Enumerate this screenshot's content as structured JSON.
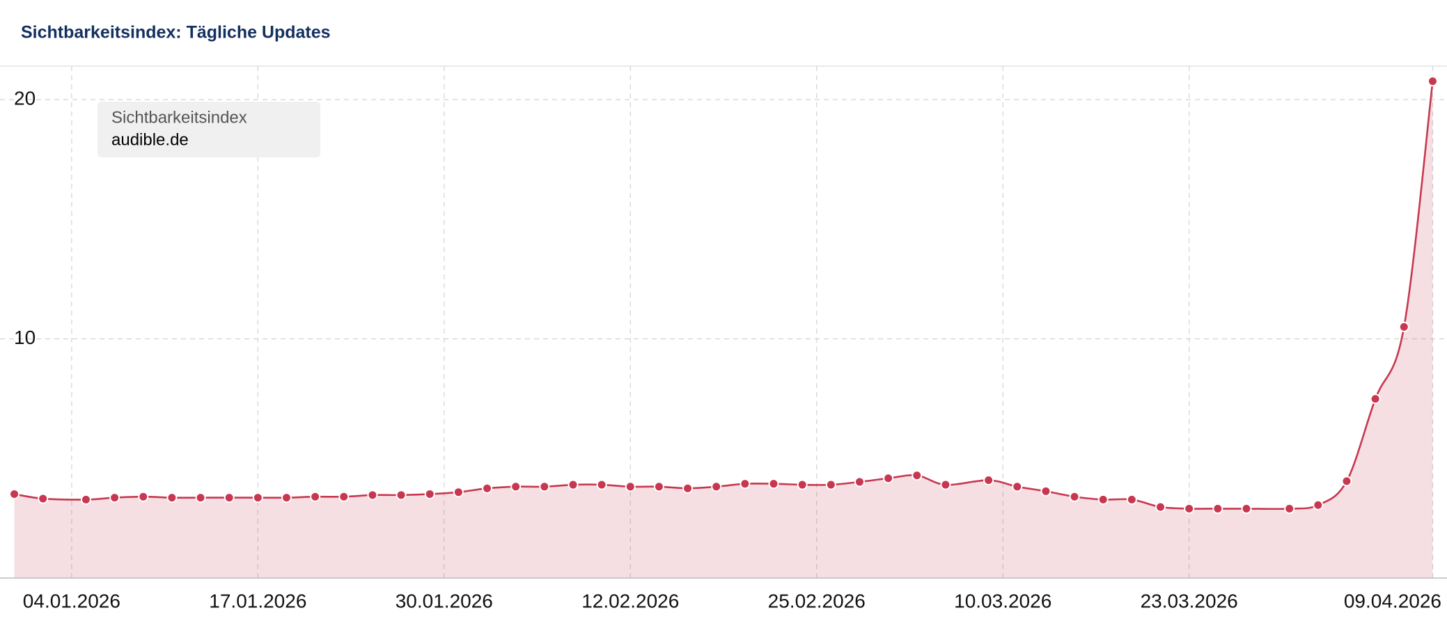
{
  "chart_data": {
    "type": "line",
    "title": "Sichtbarkeitsindex: Tägliche Updates",
    "legend_title": "Sichtbarkeitsindex",
    "x": [
      "31.12.2025",
      "02.01.2026",
      "05.01.2026",
      "07.01.2026",
      "09.01.2026",
      "11.01.2026",
      "13.01.2026",
      "15.01.2026",
      "17.01.2026",
      "19.01.2026",
      "21.01.2026",
      "23.01.2026",
      "25.01.2026",
      "27.01.2026",
      "29.01.2026",
      "31.01.2026",
      "02.02.2026",
      "04.02.2026",
      "06.02.2026",
      "08.02.2026",
      "10.02.2026",
      "12.02.2026",
      "14.02.2026",
      "16.02.2026",
      "18.02.2026",
      "20.02.2026",
      "22.02.2026",
      "24.02.2026",
      "26.02.2026",
      "28.02.2026",
      "02.03.2026",
      "04.03.2026",
      "06.03.2026",
      "09.03.2026",
      "11.03.2026",
      "13.03.2026",
      "15.03.2026",
      "17.03.2026",
      "19.03.2026",
      "21.03.2026",
      "23.03.2026",
      "25.03.2026",
      "27.03.2026",
      "30.03.2026",
      "01.04.2026",
      "03.04.2026",
      "05.04.2026",
      "07.04.2026",
      "09.04.2026"
    ],
    "series": [
      {
        "name": "audible.de",
        "color": "#c8374f",
        "values": [
          3.51,
          3.32,
          3.28,
          3.36,
          3.4,
          3.36,
          3.36,
          3.36,
          3.36,
          3.36,
          3.4,
          3.4,
          3.47,
          3.47,
          3.51,
          3.59,
          3.75,
          3.82,
          3.82,
          3.9,
          3.9,
          3.82,
          3.82,
          3.75,
          3.82,
          3.94,
          3.94,
          3.9,
          3.9,
          4.02,
          4.17,
          4.29,
          3.9,
          4.09,
          3.82,
          3.63,
          3.4,
          3.28,
          3.28,
          2.97,
          2.9,
          2.9,
          2.9,
          2.9,
          3.05,
          4.05,
          7.49,
          10.5,
          20.77
        ]
      }
    ],
    "xlim": [
      "30.12.2025",
      "10.04.2026"
    ],
    "xticks": [
      "04.01.2026",
      "17.01.2026",
      "30.01.2026",
      "12.02.2026",
      "25.02.2026",
      "10.03.2026",
      "23.03.2026",
      "09.04.2026"
    ],
    "ylim": [
      0,
      21.4
    ],
    "yticks": [
      10,
      20
    ],
    "grid": true
  }
}
